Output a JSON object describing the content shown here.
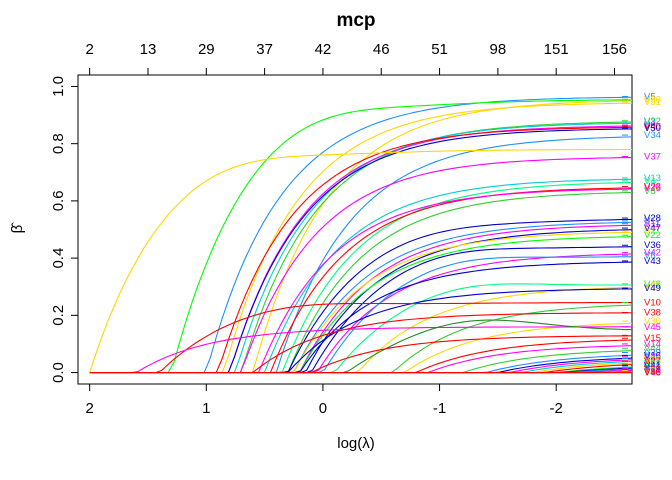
{
  "chart_data": {
    "type": "line",
    "title": "mcp",
    "xlabel": "log(λ)",
    "ylabel": "β̂",
    "xlim": [
      2.1,
      -2.65
    ],
    "ylim": [
      -0.04,
      1.04
    ],
    "x_ticks": [
      "2",
      "1",
      "0",
      "-1",
      "-2"
    ],
    "x_tick_values": [
      2,
      1,
      0,
      -1,
      -2
    ],
    "y_ticks": [
      "0.0",
      "0.2",
      "0.4",
      "0.6",
      "0.8",
      "1.0"
    ],
    "y_tick_values": [
      0.0,
      0.2,
      0.4,
      0.6,
      0.8,
      1.0
    ],
    "top_ticks": [
      "2",
      "13",
      "29",
      "37",
      "42",
      "46",
      "51",
      "98",
      "151",
      "156"
    ],
    "top_tick_values": [
      2,
      1.5,
      1.0,
      0.5,
      0.0,
      -0.5,
      -1.0,
      -1.5,
      -2.0,
      -2.5
    ],
    "x_start": 2.0,
    "x_end": -2.65,
    "series": [
      {
        "name": "V5",
        "color": "#1E90FF",
        "start": 1.0,
        "end": 0.965,
        "peak": 0.0
      },
      {
        "name": "V20",
        "color": "#FFD700",
        "start": 0.6,
        "end": 0.955,
        "peak": 0.0
      },
      {
        "name": "V31",
        "color": "#FFD700",
        "start": 0.85,
        "end": 0.945,
        "peak": 0.0
      },
      {
        "name": "",
        "color": "#00FF00",
        "start": 1.3,
        "end": 0.955,
        "peak": 1.01
      },
      {
        "name": "V32",
        "color": "#32CD32",
        "start": 0.7,
        "end": 0.88,
        "peak": 0.0
      },
      {
        "name": "V3",
        "color": "#00CED1",
        "start": 0.75,
        "end": 0.875,
        "peak": 0.0
      },
      {
        "name": "V9",
        "color": "#FF00FF",
        "start": 0.8,
        "end": 0.865,
        "peak": 0.0
      },
      {
        "name": "V40",
        "color": "#FF0000",
        "start": 0.9,
        "end": 0.86,
        "peak": 0.0
      },
      {
        "name": "V50",
        "color": "#0000CD",
        "start": 0.8,
        "end": 0.855,
        "peak": 0.0
      },
      {
        "name": "V34",
        "color": "#1E90FF",
        "start": 0.4,
        "end": 0.83,
        "peak": 0.0
      },
      {
        "name": "",
        "color": "#FFD700",
        "start": 2.0,
        "end": 0.78,
        "peak": 0.83
      },
      {
        "name": "V37",
        "color": "#FF00FF",
        "start": 0.7,
        "end": 0.755,
        "peak": 0.0
      },
      {
        "name": "V13",
        "color": "#00CED1",
        "start": 0.5,
        "end": 0.68,
        "peak": 0.0
      },
      {
        "name": "V4",
        "color": "#00FF7F",
        "start": 0.35,
        "end": 0.67,
        "peak": 0.0
      },
      {
        "name": "V23",
        "color": "#FF0000",
        "start": 0.45,
        "end": 0.65,
        "peak": 0.0
      },
      {
        "name": "V25",
        "color": "#FF00FF",
        "start": 0.55,
        "end": 0.645,
        "peak": 0.0
      },
      {
        "name": "V8",
        "color": "#32CD32",
        "start": 0.3,
        "end": 0.635,
        "peak": 0.0
      },
      {
        "name": "V28",
        "color": "#0000CD",
        "start": 0.3,
        "end": 0.54,
        "peak": 0.56
      },
      {
        "name": "V17",
        "color": "#1E90FF",
        "start": 0.25,
        "end": 0.53,
        "peak": 0.0
      },
      {
        "name": "V11",
        "color": "#FF00FF",
        "start": 0.2,
        "end": 0.52,
        "peak": 0.0
      },
      {
        "name": "V47",
        "color": "#0000CD",
        "start": 0.15,
        "end": 0.505,
        "peak": 0.0
      },
      {
        "name": "V1",
        "color": "#FFD700",
        "start": 0.25,
        "end": 0.495,
        "peak": 0.0
      },
      {
        "name": "V22",
        "color": "#00FF00",
        "start": 0.2,
        "end": 0.48,
        "peak": 0.0
      },
      {
        "name": "V36",
        "color": "#0000CD",
        "start": 0.1,
        "end": 0.445,
        "peak": 0.48
      },
      {
        "name": "V42",
        "color": "#FF00FF",
        "start": 0.05,
        "end": 0.42,
        "peak": 0.0
      },
      {
        "name": "V6",
        "color": "#1E90FF",
        "start": 0.0,
        "end": 0.41,
        "peak": 0.45
      },
      {
        "name": "V43",
        "color": "#0000CD",
        "start": 0.2,
        "end": 0.39,
        "peak": 0.0
      },
      {
        "name": "V48",
        "color": "#00FF7F",
        "start": -0.1,
        "end": 0.31,
        "peak": 0.35
      },
      {
        "name": "V29",
        "color": "#FFD700",
        "start": -0.3,
        "end": 0.305,
        "peak": 0.0
      },
      {
        "name": "V49",
        "color": "#0000CD",
        "start": 0.3,
        "end": 0.295,
        "peak": 0.0
      },
      {
        "name": "V10",
        "color": "#FF0000",
        "start": 1.4,
        "end": 0.245,
        "peak": 0.27
      },
      {
        "name": "",
        "color": "#32CD32",
        "start": -0.6,
        "end": 0.245,
        "peak": 0.0
      },
      {
        "name": "V38",
        "color": "#FF0000",
        "start": 0.6,
        "end": 0.21,
        "peak": 0.0
      },
      {
        "name": "V30",
        "color": "#FFD700",
        "start": -0.7,
        "end": 0.18,
        "peak": 0.0
      },
      {
        "name": "V45",
        "color": "#FF00FF",
        "start": 1.6,
        "end": 0.16,
        "peak": 0.0
      },
      {
        "name": "",
        "color": "#228B22",
        "start": -0.2,
        "end": 0.15,
        "peak": 0.21
      },
      {
        "name": "V15",
        "color": "#FF0000",
        "start": -0.8,
        "end": 0.12,
        "peak": 0.0
      },
      {
        "name": "V14",
        "color": "#FF00FF",
        "start": -0.9,
        "end": 0.1,
        "peak": 0.0
      },
      {
        "name": "",
        "color": "#FF0000",
        "start": 0.1,
        "end": 0.13,
        "peak": 0.0
      },
      {
        "name": "V44",
        "color": "#32CD32",
        "start": -1.2,
        "end": 0.085,
        "peak": 0.0
      },
      {
        "name": "V39",
        "color": "#1E90FF",
        "start": -1.4,
        "end": 0.07,
        "peak": 0.0
      },
      {
        "name": "V16",
        "color": "#0000CD",
        "start": -1.5,
        "end": 0.06,
        "peak": 0.0
      },
      {
        "name": "V24",
        "color": "#FF00FF",
        "start": -1.6,
        "end": 0.055,
        "peak": 0.0
      },
      {
        "name": "V26",
        "color": "#00CED1",
        "start": -1.7,
        "end": 0.05,
        "peak": 0.0
      },
      {
        "name": "V19",
        "color": "#FFD700",
        "start": -1.8,
        "end": 0.045,
        "peak": 0.0
      },
      {
        "name": "V27",
        "color": "#FF0000",
        "start": -1.9,
        "end": 0.04,
        "peak": 0.0
      },
      {
        "name": "V12",
        "color": "#00FF00",
        "start": -2.0,
        "end": 0.03,
        "peak": 0.0
      },
      {
        "name": "V41",
        "color": "#0000CD",
        "start": -2.05,
        "end": 0.025,
        "peak": 0.0
      },
      {
        "name": "V33",
        "color": "#1E90FF",
        "start": -2.1,
        "end": 0.02,
        "peak": 0.0
      },
      {
        "name": "V21",
        "color": "#FF00FF",
        "start": -2.2,
        "end": 0.015,
        "peak": 0.0
      },
      {
        "name": "V18",
        "color": "#FF0000",
        "start": -2.3,
        "end": 0.01,
        "peak": 0.0
      },
      {
        "name": "V2",
        "color": "#FFD700",
        "start": -2.35,
        "end": 0.007,
        "peak": 0.0
      },
      {
        "name": "V7",
        "color": "#32CD32",
        "start": -2.4,
        "end": 0.004,
        "peak": 0.0
      },
      {
        "name": "V35",
        "color": "#FF00FF",
        "start": -2.45,
        "end": 0.002,
        "peak": 0.0
      },
      {
        "name": "V46",
        "color": "#FF0000",
        "start": -2.5,
        "end": 0.0,
        "peak": 0.0
      }
    ]
  }
}
